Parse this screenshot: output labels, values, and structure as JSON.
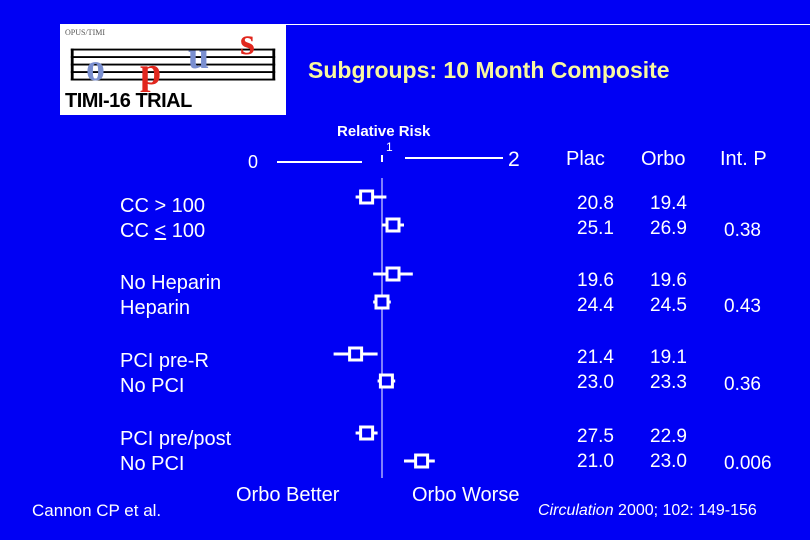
{
  "logo": {
    "small_text": "OPUS/TIMI",
    "letters": [
      "o",
      "p",
      "u",
      "s"
    ],
    "tagline": "TIMI-16 TRIAL"
  },
  "title": "Subgroups: 10 Month Composite",
  "colors": {
    "background": "#0000f4",
    "title": "#f8f8a0",
    "text": "#ffffff",
    "logo_red": "#e1271e",
    "logo_blue": "#7a8fd0"
  },
  "chart_data": {
    "type": "forest",
    "axis_title": "Relative Risk",
    "axis_ticks": [
      "0",
      "1",
      "2"
    ],
    "xlim": [
      0,
      2
    ],
    "reference_line": 1,
    "column_headers": {
      "plac": "Plac",
      "orbo": "Orbo",
      "int_p": "Int. P"
    },
    "subgroups": [
      {
        "labels": [
          "CC > 100",
          "CC < 100"
        ],
        "int_p": "0.38",
        "rows": [
          {
            "plac": "20.8",
            "orbo": "19.4",
            "rr": 0.93,
            "ci": [
              0.88,
              1.02
            ]
          },
          {
            "plac": "25.1",
            "orbo": "26.9",
            "rr": 1.05,
            "ci": [
              1.0,
              1.1
            ]
          }
        ]
      },
      {
        "labels": [
          "No Heparin",
          "Heparin"
        ],
        "int_p": "0.43",
        "rows": [
          {
            "plac": "19.6",
            "orbo": "19.6",
            "rr": 1.05,
            "ci": [
              0.96,
              1.14
            ]
          },
          {
            "plac": "24.4",
            "orbo": "24.5",
            "rr": 1.0,
            "ci": [
              0.96,
              1.04
            ]
          }
        ]
      },
      {
        "labels": [
          "PCI pre-R",
          "No PCI"
        ],
        "int_p": "0.36",
        "rows": [
          {
            "plac": "21.4",
            "orbo": "19.1",
            "rr": 0.88,
            "ci": [
              0.78,
              0.98
            ]
          },
          {
            "plac": "23.0",
            "orbo": "23.3",
            "rr": 1.02,
            "ci": [
              0.98,
              1.06
            ]
          }
        ]
      },
      {
        "labels": [
          "PCI pre/post",
          "No PCI"
        ],
        "int_p": "0.006",
        "rows": [
          {
            "plac": "27.5",
            "orbo": "22.9",
            "rr": 0.93,
            "ci": [
              0.88,
              0.98
            ]
          },
          {
            "plac": "21.0",
            "orbo": "23.0",
            "rr": 1.18,
            "ci": [
              1.1,
              1.24
            ]
          }
        ]
      }
    ],
    "bottom_labels": {
      "better": "Orbo  Better",
      "worse": "Orbo  Worse"
    }
  },
  "footer": {
    "author": "Cannon CP et al.",
    "journal": "Circulation",
    "citation": " 2000; 102: 149-156"
  }
}
